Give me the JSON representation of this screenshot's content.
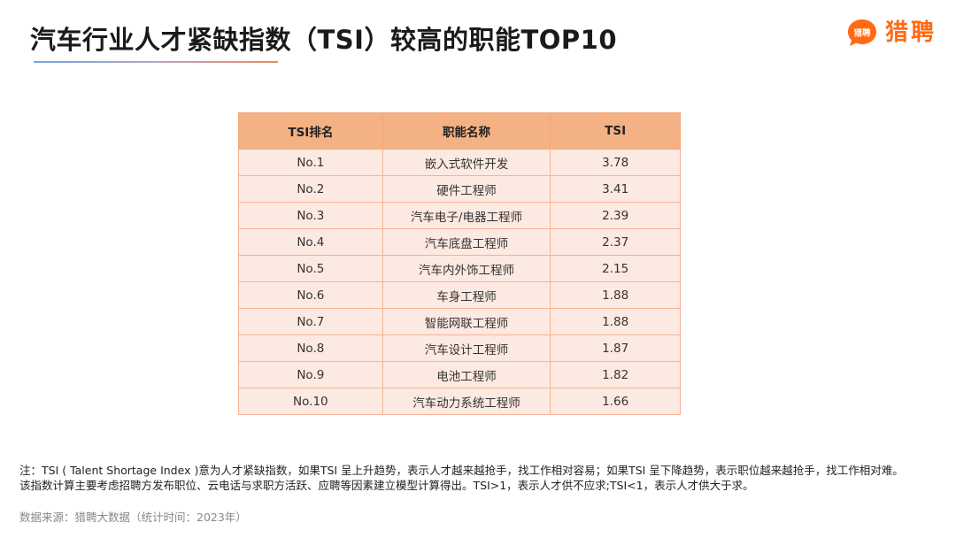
{
  "header": {
    "title": "汽车行业人才紧缺指数（TSI）较高的职能TOP10",
    "logo_icon_text": "猎聘",
    "logo_text": "猎聘"
  },
  "colors": {
    "header_fill": "#f4b183",
    "row_fill": "#fce9e1",
    "border": "#f5b495",
    "brand": "#ff6a13"
  },
  "chart_data": {
    "type": "table",
    "columns": [
      "TSI排名",
      "职能名称",
      "TSI"
    ],
    "rows": [
      [
        "No.1",
        "嵌入式软件开发",
        "3.78"
      ],
      [
        "No.2",
        "硬件工程师",
        "3.41"
      ],
      [
        "No.3",
        "汽车电子/电器工程师",
        "2.39"
      ],
      [
        "No.4",
        "汽车底盘工程师",
        "2.37"
      ],
      [
        "No.5",
        "汽车内外饰工程师",
        "2.15"
      ],
      [
        "No.6",
        "车身工程师",
        "1.88"
      ],
      [
        "No.7",
        "智能网联工程师",
        "1.88"
      ],
      [
        "No.8",
        "汽车设计工程师",
        "1.87"
      ],
      [
        "No.9",
        "电池工程师",
        "1.82"
      ],
      [
        "No.10",
        "汽车动力系统工程师",
        "1.66"
      ]
    ]
  },
  "footer": {
    "note": "注：TSI ( Talent Shortage Index )意为人才紧缺指数，如果TSI 呈上升趋势，表示人才越来越抢手，找工作相对容易；如果TSI 呈下降趋势，表示职位越来越抢手，找工作相对难。该指数计算主要考虑招聘方发布职位、云电话与求职方活跃、应聘等因素建立模型计算得出。TSI>1，表示人才供不应求;TSI<1，表示人才供大于求。",
    "source": "数据来源：猎聘大数据（统计时间：2023年）"
  }
}
